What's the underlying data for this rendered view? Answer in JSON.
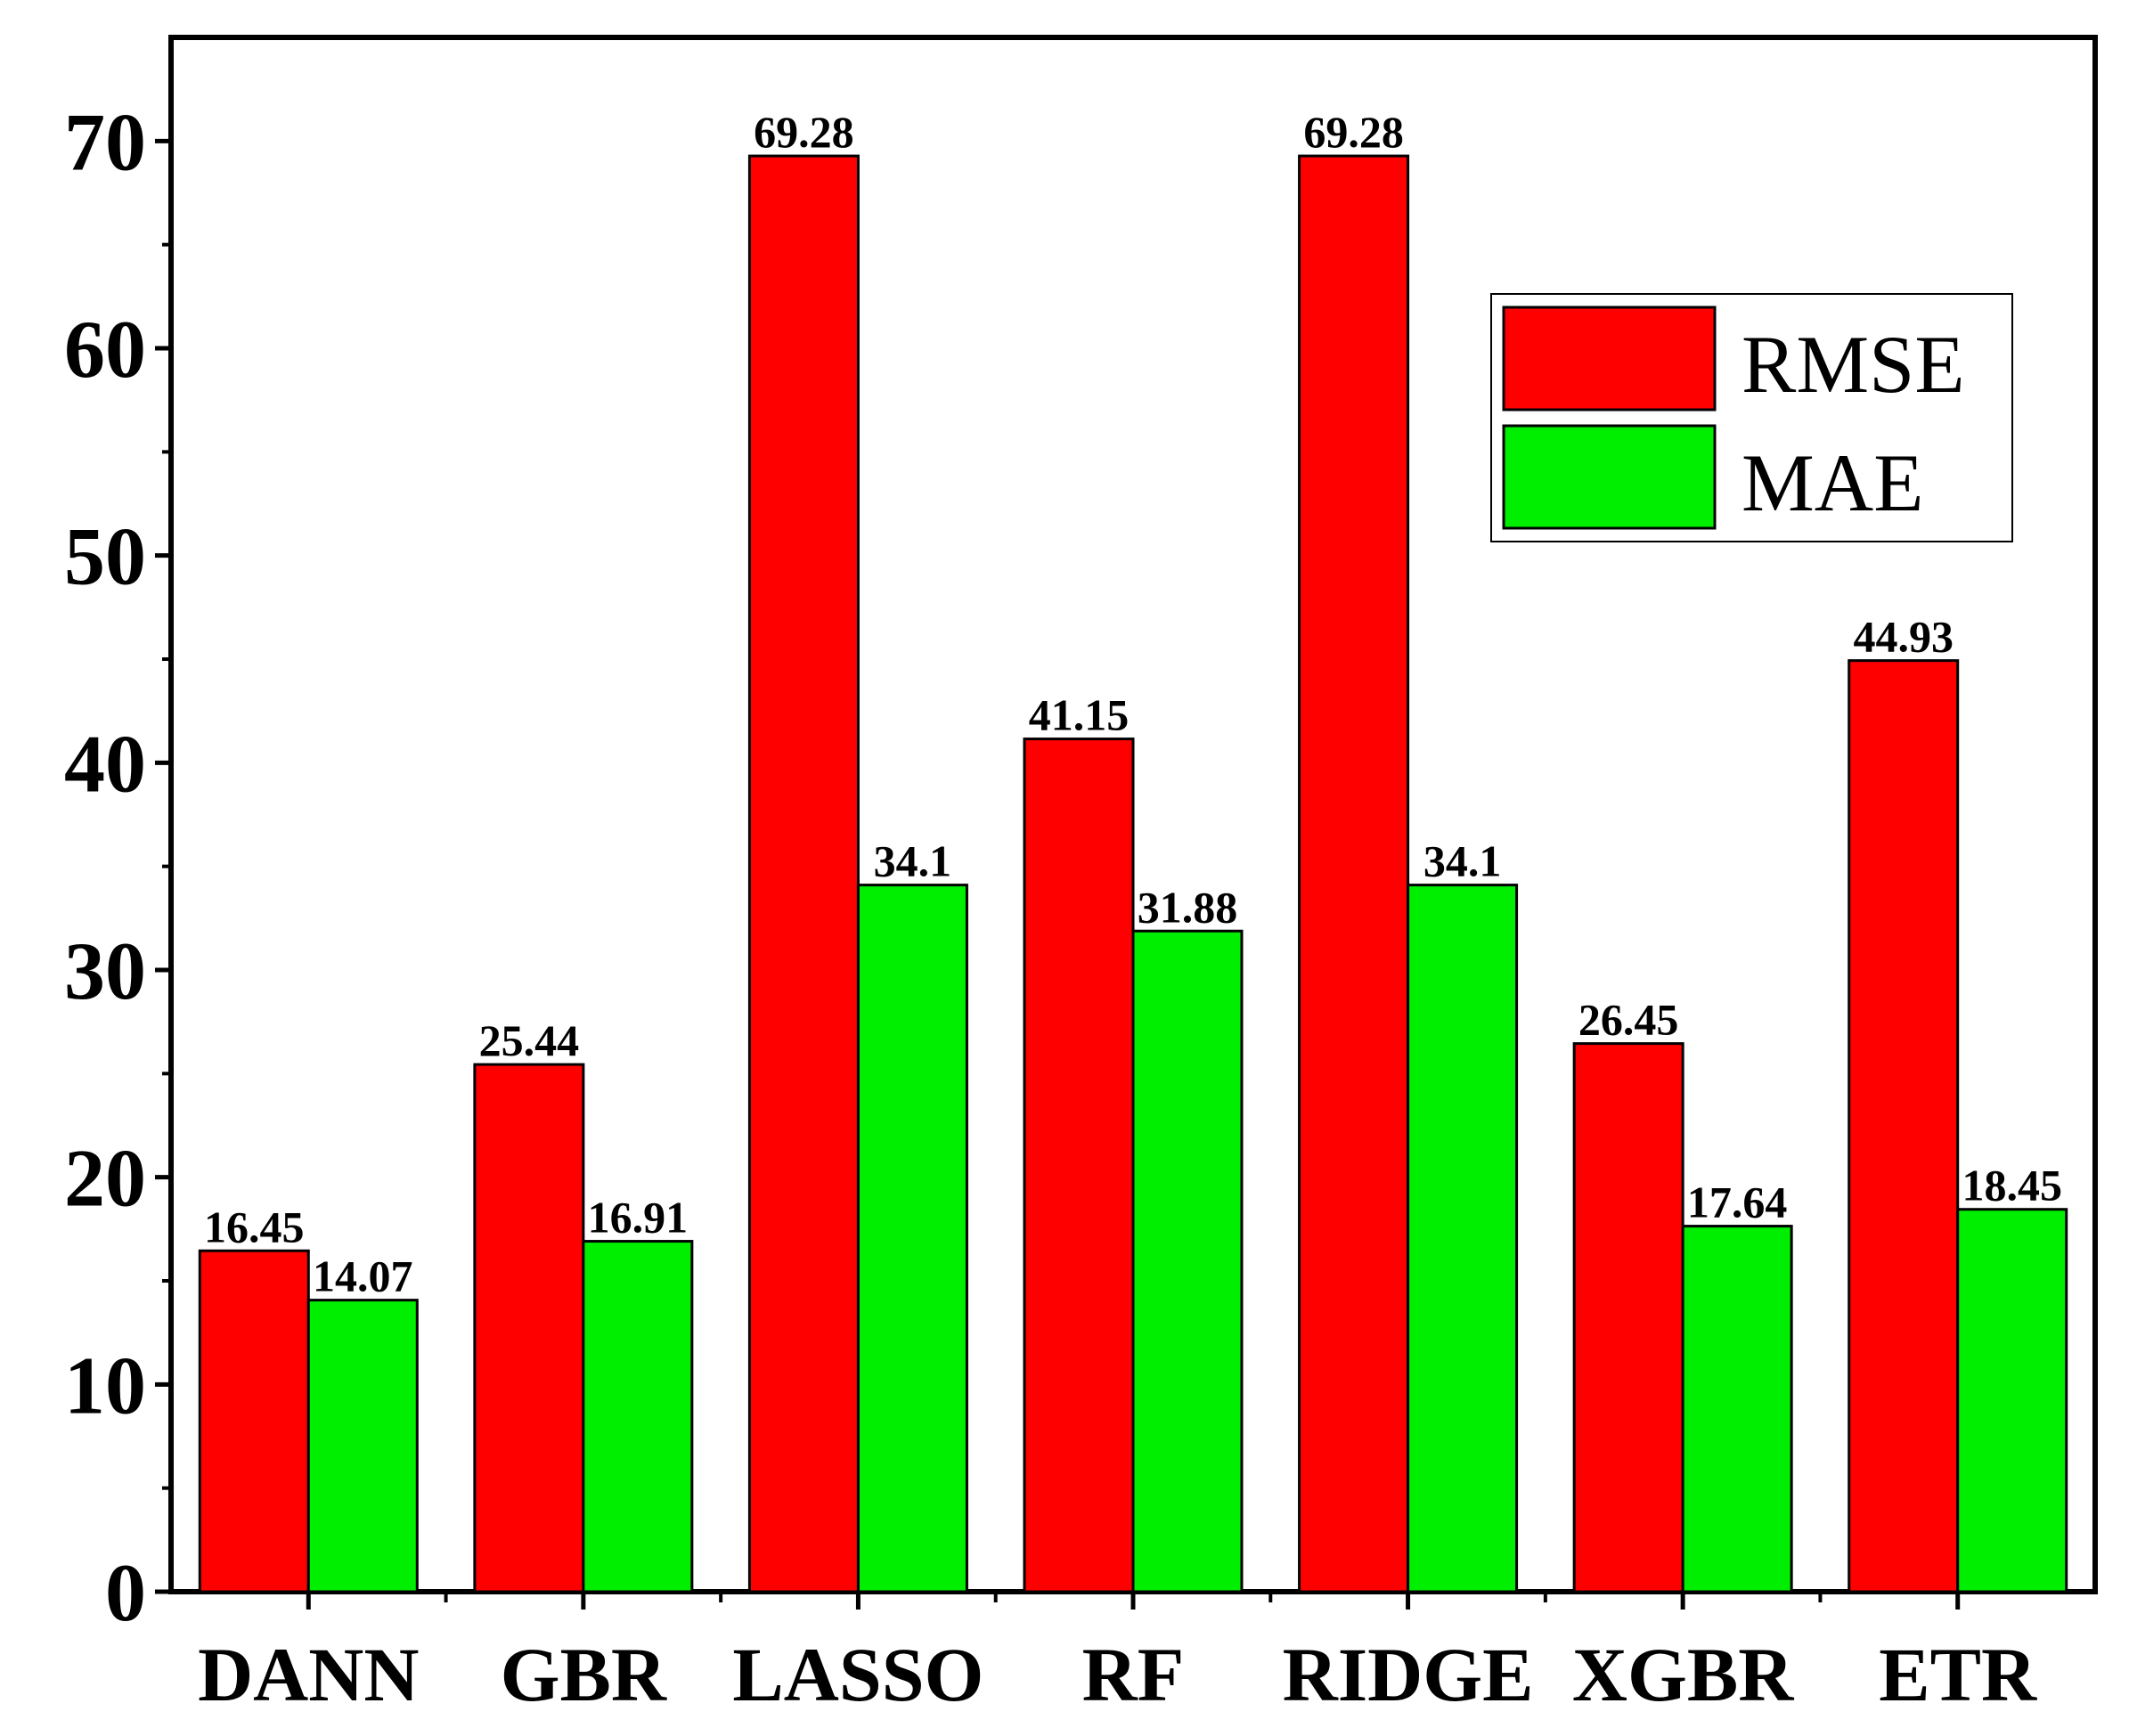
{
  "chart_data": {
    "type": "bar",
    "categories": [
      "DANN",
      "GBR",
      "LASSO",
      "RF",
      "RIDGE",
      "XGBR",
      "ETR"
    ],
    "series": [
      {
        "name": "RMSE",
        "color": "#ff0000",
        "values": [
          16.45,
          25.44,
          69.28,
          41.15,
          69.28,
          26.45,
          44.93
        ]
      },
      {
        "name": "MAE",
        "color": "#00ee00",
        "values": [
          14.07,
          16.91,
          34.1,
          31.88,
          34.1,
          17.64,
          18.45
        ]
      }
    ],
    "title": "",
    "xlabel": "",
    "ylabel": "",
    "ylim": [
      0,
      75
    ],
    "yticks": [
      0,
      10,
      20,
      30,
      40,
      50,
      60,
      70
    ],
    "grid": false,
    "legend": "top-right"
  }
}
